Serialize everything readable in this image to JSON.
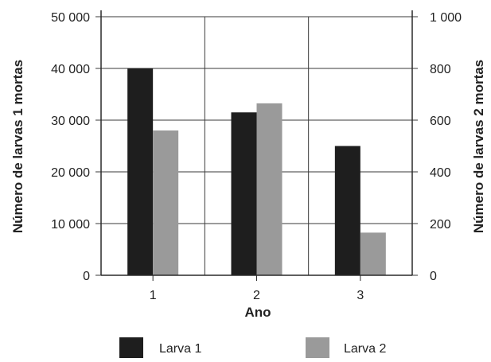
{
  "chart_data": {
    "type": "bar",
    "xlabel": "Ano",
    "ylabel_left": "Número de larvas 1 mortas",
    "ylabel_right": "Número de larvas 2 mortas",
    "categories": [
      "1",
      "2",
      "3"
    ],
    "left_axis": {
      "ylim": [
        0,
        50000
      ],
      "ticks": [
        0,
        10000,
        20000,
        30000,
        40000,
        50000
      ],
      "tick_labels": [
        "0",
        "10 000",
        "20 000",
        "30 000",
        "40 000",
        "50 000"
      ]
    },
    "right_axis": {
      "ylim": [
        0,
        1000
      ],
      "ticks": [
        0,
        200,
        400,
        600,
        800,
        1000
      ],
      "tick_labels": [
        "0",
        "200",
        "400",
        "600",
        "800",
        "1 000"
      ]
    },
    "series": [
      {
        "name": "Larva 1",
        "axis": "left",
        "color": "#1e1e1e",
        "values": [
          40000,
          31500,
          25000
        ]
      },
      {
        "name": "Larva 2",
        "axis": "right",
        "color": "#9a9a9a",
        "values": [
          560,
          665,
          165
        ]
      }
    ],
    "grid": true,
    "legend_position": "bottom"
  }
}
